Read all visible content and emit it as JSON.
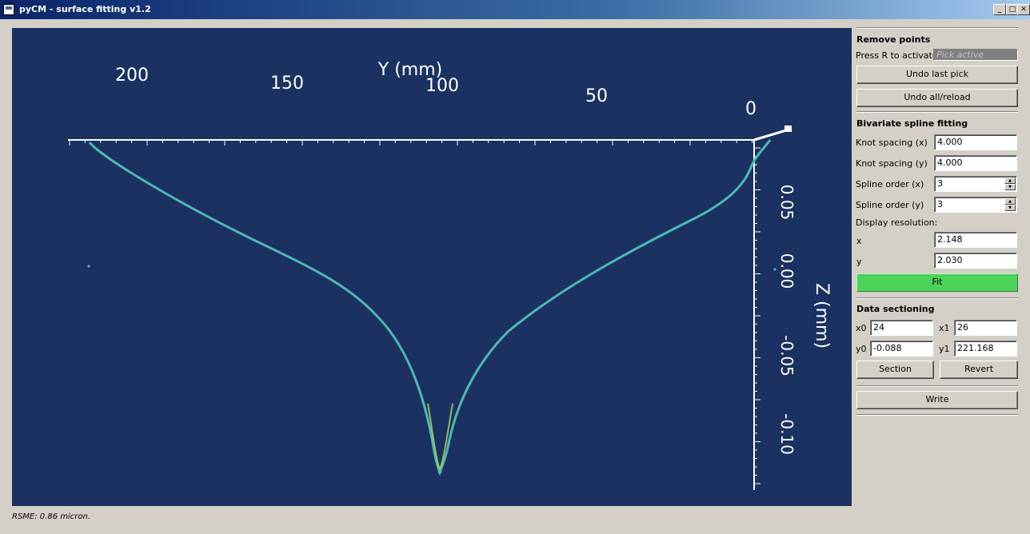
{
  "window": {
    "title": "pyCM - surface fitting v1.2",
    "minimize": "_",
    "maximize": "□",
    "close": "✕"
  },
  "plot": {
    "y_axis_label": "Y (mm)",
    "z_axis_label": "Z (mm)",
    "y_ticks": [
      "200",
      "150",
      "100",
      "50",
      "0"
    ],
    "z_ticks": [
      "0.05",
      "0.00",
      "-0.05",
      "-0.10"
    ],
    "colors": {
      "background": "#1b3162",
      "axis": "#ffffff",
      "points": "#4fb8b0",
      "points_tip": "#b6d95a"
    }
  },
  "panel": {
    "remove_points": {
      "title": "Remove points",
      "press_label": "Press R to activate",
      "pick_status": "Pick active",
      "undo_last": "Undo last pick",
      "undo_all": "Undo all/reload"
    },
    "spline": {
      "title": "Bivariate spline fitting",
      "knot_x_label": "Knot spacing (x)",
      "knot_x": "4.000",
      "knot_y_label": "Knot spacing (y)",
      "knot_y": "4.000",
      "order_x_label": "Spline order (x)",
      "order_x": "3",
      "order_y_label": "Spline order (y)",
      "order_y": "3",
      "display_res_label": "Display resolution:",
      "res_x_label": "x",
      "res_x": "2.148",
      "res_y_label": "y",
      "res_y": "2.030",
      "fit": "Fit"
    },
    "sectioning": {
      "title": "Data sectioning",
      "x0_label": "x0",
      "x0": "24",
      "x1_label": "x1",
      "x1": "26",
      "y0_label": "y0",
      "y0": "-0.088",
      "y1_label": "y1",
      "y1": "221.168",
      "section": "Section",
      "revert": "Revert"
    },
    "write": "Write"
  },
  "status": "RSME: 0.86 micron."
}
